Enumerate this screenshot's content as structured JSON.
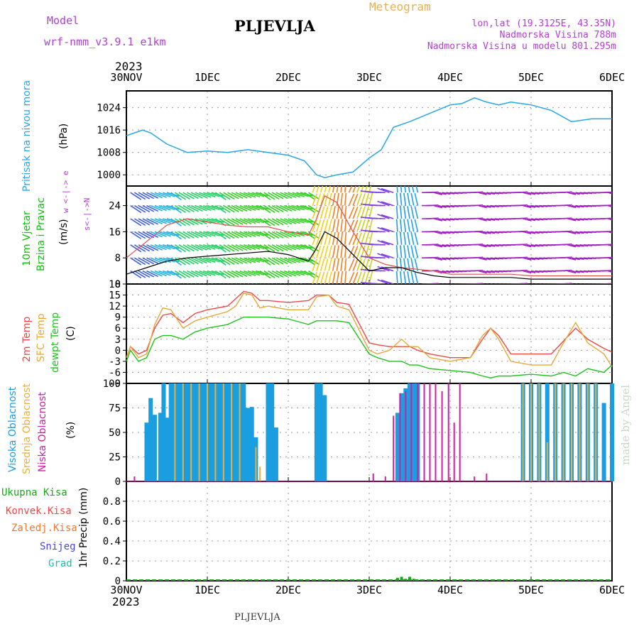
{
  "header": {
    "model_label": "Model",
    "model_value": "wrf-nmm_v3.9.1  e1km",
    "title": "PLJEVLJA",
    "product": "Meteogram",
    "lonlat": "lon,lat (19.3125E, 43.35N)",
    "elevation": "Nadmorska Visina 788m",
    "model_elevation": "Nadmorska Visina u modelu 801.295m",
    "footer_title": "PLJEVLJA",
    "watermark": "made by Angel",
    "year_top": "2023",
    "year_bottom": "2023"
  },
  "colors": {
    "pressure": "#2aa6e6",
    "wind_label": "#10c010",
    "temp2m": "#f04848",
    "sfc": "#e8a838",
    "dew": "#20c020",
    "cloud_high": "#1a9ee0",
    "cloud_mid": "#e8b040",
    "cloud_low": "#d020a0",
    "total_precip": "#18a818",
    "conv_precip": "#f04848",
    "frozen_precip": "#f07830",
    "snow": "#4848e0",
    "graupel": "#18c0b0",
    "purple": "#b040d0"
  },
  "chart_data": [
    {
      "type": "line",
      "name": "pressure",
      "ylabel_name": "Pritisak na nivou mora",
      "ylabel_unit": "(hPa)",
      "x_ticks": [
        "30NOV",
        "1DEC",
        "2DEC",
        "3DEC",
        "4DEC",
        "5DEC",
        "6DEC"
      ],
      "x_range_days": [
        0,
        6
      ],
      "ylim": [
        996,
        1030
      ],
      "yticks": [
        "1000",
        "1008",
        "1016",
        "1024"
      ],
      "series": [
        {
          "x": [
            0,
            0.1,
            0.2,
            0.3,
            0.5,
            0.75,
            1.0,
            1.25,
            1.5,
            1.75,
            2.0,
            2.2,
            2.35,
            2.45,
            2.6,
            2.8,
            3.0,
            3.15,
            3.3,
            3.5,
            3.75,
            4.0,
            4.15,
            4.3,
            4.45,
            4.6,
            4.75,
            5.0,
            5.25,
            5.5,
            5.75,
            6.0
          ],
          "y": [
            1014,
            1015,
            1016,
            1015,
            1011,
            1008,
            1008.5,
            1008,
            1009,
            1008,
            1007,
            1005,
            1000,
            999,
            1000,
            1001,
            1006,
            1009,
            1017,
            1019,
            1022,
            1025,
            1025.5,
            1027.5,
            1026,
            1025,
            1026,
            1025,
            1023,
            1019,
            1020,
            1020
          ]
        }
      ]
    },
    {
      "type": "line",
      "name": "wind",
      "ylabel_name": "10m Vjetar",
      "ylabel_name2": "Brzina i Pravac",
      "ylabel_unit": "(m/s)",
      "legend_compass": "w <-|-> e",
      "legend_compass2": "s<-|->N",
      "ylim": [
        0,
        30
      ],
      "yticks": [
        "0",
        "8",
        "16",
        "24"
      ],
      "series": [
        {
          "x": [
            0,
            0.25,
            0.5,
            0.75,
            1.0,
            1.25,
            1.5,
            1.75,
            2.0,
            2.25,
            2.35,
            2.45,
            2.6,
            2.8,
            3.0,
            3.2,
            3.4,
            3.6,
            3.8,
            4.0,
            4.25,
            4.5,
            4.75,
            5.0,
            5.5,
            6.0
          ],
          "y": [
            3,
            5,
            7,
            8,
            8.5,
            9,
            9.5,
            10,
            9,
            7,
            11,
            16,
            14,
            9,
            4,
            5,
            5,
            3.5,
            2.5,
            2,
            2,
            2,
            2,
            1.5,
            1.5,
            1.5
          ]
        },
        {
          "x": [
            0,
            0.25,
            0.5,
            0.75,
            1.0,
            1.25,
            1.5,
            1.75,
            2.0,
            2.25,
            2.35,
            2.45,
            2.6,
            2.8,
            3.0,
            3.2,
            3.4,
            3.6,
            3.8,
            4.0,
            4.25,
            4.5,
            4.75,
            5.0,
            5.5,
            6.0
          ],
          "y": [
            8,
            13,
            18,
            20,
            19,
            18,
            17.5,
            17.5,
            16,
            15,
            20,
            27,
            25,
            16,
            8,
            6,
            5,
            4.5,
            4,
            3,
            3,
            3,
            3,
            2.5,
            2.5,
            2.5
          ]
        }
      ]
    },
    {
      "type": "line",
      "name": "temperature",
      "ylabel_name": "2m Temp",
      "ylabel_name2": "SFC Temp",
      "ylabel_name3": "dewpt Temp",
      "ylabel_unit": "(C)",
      "ylim": [
        -9,
        18
      ],
      "yticks": [
        "-9",
        "-6",
        "-3",
        "0",
        "3",
        "6",
        "9",
        "12",
        "15",
        "18"
      ],
      "series": [
        {
          "name": "2m Temp",
          "x": [
            0,
            0.05,
            0.15,
            0.25,
            0.35,
            0.45,
            0.55,
            0.7,
            0.85,
            1.0,
            1.25,
            1.35,
            1.45,
            1.55,
            1.65,
            1.75,
            2.0,
            2.25,
            2.35,
            2.5,
            2.6,
            2.75,
            3.0,
            3.1,
            3.25,
            3.4,
            3.5,
            3.6,
            3.75,
            4.0,
            4.25,
            4.4,
            4.5,
            4.6,
            4.75,
            5.0,
            5.25,
            5.4,
            5.55,
            5.7,
            5.9,
            6.0
          ],
          "y": [
            -2,
            1,
            -1,
            0,
            6,
            9.5,
            10,
            7.5,
            10,
            11,
            12,
            14,
            16,
            15.5,
            13.5,
            13.5,
            13,
            13.5,
            15,
            15,
            13,
            12.5,
            2,
            1.5,
            1,
            1,
            1,
            0,
            -1,
            -2,
            -2,
            3,
            6,
            4,
            -1,
            -1,
            -1,
            2.5,
            6,
            3,
            0.5,
            -0.5
          ]
        },
        {
          "name": "SFC Temp",
          "x": [
            0,
            0.05,
            0.15,
            0.25,
            0.35,
            0.45,
            0.55,
            0.7,
            0.85,
            1.0,
            1.25,
            1.35,
            1.45,
            1.55,
            1.65,
            1.75,
            2.0,
            2.25,
            2.35,
            2.5,
            2.6,
            2.75,
            3.0,
            3.1,
            3.25,
            3.4,
            3.5,
            3.6,
            3.75,
            4.0,
            4.25,
            4.4,
            4.5,
            4.6,
            4.75,
            5.0,
            5.25,
            5.4,
            5.55,
            5.7,
            5.9,
            6.0
          ],
          "y": [
            -2,
            1,
            -2,
            -1,
            7,
            11.5,
            11,
            6,
            8,
            9,
            10.5,
            12,
            15.5,
            15,
            11.5,
            12,
            11,
            11,
            14.5,
            15,
            12,
            11,
            0,
            -1,
            0,
            3,
            1,
            1,
            -2,
            -3,
            -2,
            4,
            6,
            3,
            -3,
            -4,
            -4,
            2,
            7.5,
            2,
            -1,
            -4.5
          ]
        },
        {
          "name": "dewpt Temp",
          "x": [
            0,
            0.05,
            0.15,
            0.25,
            0.35,
            0.45,
            0.55,
            0.7,
            0.85,
            1.0,
            1.25,
            1.35,
            1.45,
            1.55,
            1.65,
            1.75,
            2.0,
            2.25,
            2.35,
            2.5,
            2.6,
            2.75,
            3.0,
            3.1,
            3.25,
            3.4,
            3.5,
            3.6,
            3.75,
            4.0,
            4.25,
            4.4,
            4.5,
            4.6,
            4.75,
            5.0,
            5.25,
            5.4,
            5.55,
            5.7,
            5.9,
            6.0
          ],
          "y": [
            -3,
            0,
            -3,
            -2,
            3,
            4,
            4,
            3,
            5,
            6,
            7,
            8,
            9,
            9,
            9,
            9,
            8.5,
            7,
            8,
            8,
            8,
            7.5,
            -1,
            -2,
            -3,
            -3,
            -4,
            -4,
            -5,
            -5.5,
            -6,
            -7,
            -7.5,
            -7,
            -7,
            -6.5,
            -7,
            -6,
            -7,
            -5,
            -6,
            -4
          ]
        }
      ]
    },
    {
      "type": "bar",
      "name": "clouds",
      "ylabel_name": "Visoka Oblacnost",
      "ylabel_name2": "Srednja Oblacnost",
      "ylabel_name3": "Niska Oblacnost",
      "ylabel_unit": "(%)",
      "ylim": [
        0,
        100
      ],
      "yticks": [
        "0",
        "25",
        "50",
        "75",
        "100"
      ],
      "series": [
        {
          "name": "Visoka Oblacnost",
          "x": [
            0.25,
            0.3,
            0.35,
            0.42,
            0.46,
            0.5,
            0.55,
            0.6,
            0.65,
            0.7,
            0.75,
            0.8,
            0.85,
            0.9,
            0.95,
            1.0,
            1.05,
            1.1,
            1.15,
            1.2,
            1.25,
            1.3,
            1.35,
            1.4,
            1.45,
            1.5,
            1.55,
            1.6,
            1.75,
            1.8,
            1.85,
            2.35,
            2.4,
            2.45,
            3.35,
            3.4,
            3.45,
            3.5,
            3.55,
            3.6,
            4.9,
            5.0,
            5.1,
            5.2,
            5.3,
            5.4,
            5.5,
            5.6,
            5.7,
            5.8,
            5.9,
            6.0
          ],
          "y": [
            60,
            85,
            68,
            70,
            100,
            65,
            100,
            100,
            100,
            100,
            100,
            100,
            100,
            100,
            100,
            100,
            100,
            100,
            100,
            100,
            100,
            100,
            100,
            100,
            100,
            75,
            76,
            45,
            100,
            100,
            55,
            100,
            100,
            88,
            70,
            90,
            95,
            100,
            100,
            100,
            100,
            100,
            100,
            100,
            100,
            100,
            100,
            100,
            100,
            100,
            80,
            100
          ]
        },
        {
          "name": "Srednja Oblacnost",
          "x": [
            0.6,
            0.7,
            0.8,
            0.9,
            1.0,
            1.1,
            1.2,
            1.3,
            1.4,
            1.6,
            1.65,
            4.9,
            5.0,
            5.1,
            5.2,
            5.3,
            5.4,
            5.5,
            5.6,
            5.7,
            5.8
          ],
          "y": [
            100,
            100,
            100,
            100,
            100,
            100,
            100,
            100,
            100,
            35,
            15,
            100,
            100,
            100,
            40,
            100,
            100,
            100,
            100,
            100,
            100
          ]
        },
        {
          "name": "Niska Oblacnost",
          "x": [
            0.1,
            3.05,
            3.2,
            3.3,
            3.38,
            3.45,
            3.52,
            3.6,
            3.68,
            3.75,
            3.82,
            3.9,
            3.98,
            4.05,
            4.12,
            4.3,
            4.45
          ],
          "y": [
            5,
            8,
            5,
            67,
            90,
            92,
            100,
            100,
            100,
            100,
            100,
            92,
            100,
            60,
            100,
            5,
            8
          ]
        }
      ]
    },
    {
      "type": "bar",
      "name": "precipitation",
      "ylabel_name": "1hr Precip (mm)",
      "ylim": [
        0,
        1.0
      ],
      "yticks": [
        "0",
        "0.2",
        "0.4",
        "0.6",
        "0.8"
      ],
      "legend": [
        "Ukupna Kisa",
        "Konvek.Kisa",
        "Zaledj.Kisa",
        "Snijeg",
        "Grad"
      ],
      "series": [
        {
          "name": "Ukupna Kisa",
          "x": [
            3.35,
            3.4,
            3.45,
            3.5,
            3.55,
            3.6
          ],
          "y": [
            0.03,
            0.04,
            0.02,
            0.04,
            0.02,
            0.01
          ]
        }
      ]
    }
  ]
}
